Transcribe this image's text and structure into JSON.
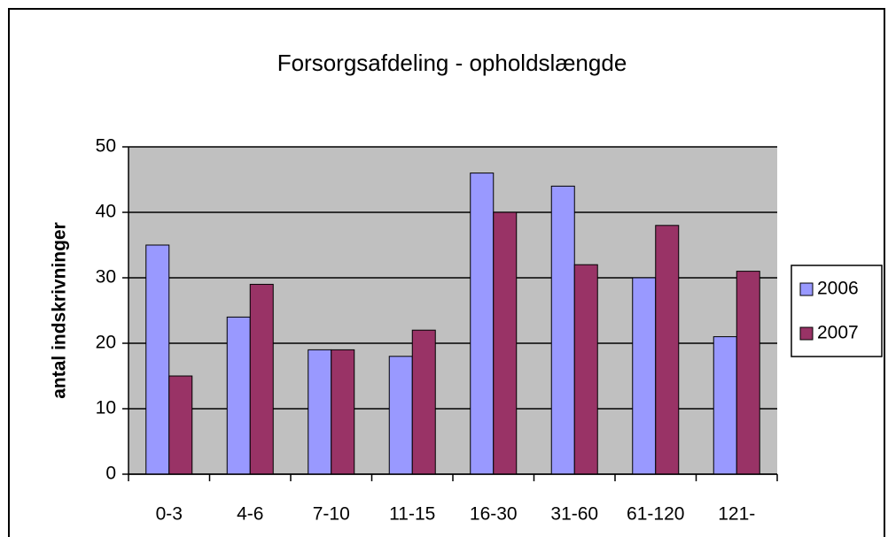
{
  "chart_data": {
    "type": "bar",
    "title": "Forsorgsafdeling - opholdslængde",
    "y_label": "antal indskrivninger",
    "categories": [
      "0-3",
      "4-6",
      "7-10",
      "11-15",
      "16-30",
      "31-60",
      "61-120",
      "121-"
    ],
    "series": [
      {
        "name": "2006",
        "color": "#9999ff",
        "values": [
          35,
          24,
          19,
          18,
          46,
          44,
          30,
          21
        ]
      },
      {
        "name": "2007",
        "color": "#993366",
        "values": [
          15,
          29,
          19,
          22,
          40,
          32,
          38,
          31
        ]
      }
    ],
    "ylim": [
      0,
      50
    ],
    "yticks": [
      0,
      10,
      20,
      30,
      40,
      50
    ],
    "grid": true,
    "legend": "right"
  }
}
